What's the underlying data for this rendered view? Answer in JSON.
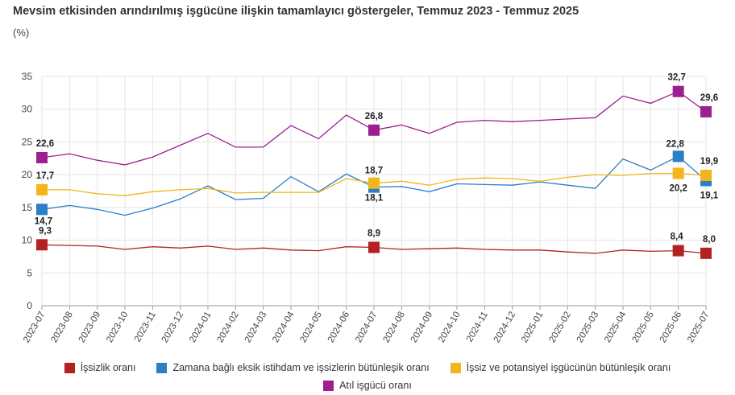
{
  "title": "Mevsim etkisinden arındırılmış işgücüne ilişkin tamamlayıcı göstergeler, Temmuz 2023 - Temmuz 2025",
  "subtitle": "(%)",
  "chart_data": {
    "type": "line",
    "categories": [
      "2023-07",
      "2023-08",
      "2023-09",
      "2023-10",
      "2023-11",
      "2023-12",
      "2024-01",
      "2024-02",
      "2024-03",
      "2024-04",
      "2024-05",
      "2024-06",
      "2024-07",
      "2024-08",
      "2024-09",
      "2024-10",
      "2024-11",
      "2024-12",
      "2025-01",
      "2025-02",
      "2025-03",
      "2025-04",
      "2025-05",
      "2025-06",
      "2025-07"
    ],
    "ylim": [
      0,
      35
    ],
    "yticks": [
      0,
      5,
      10,
      15,
      20,
      25,
      30,
      35
    ],
    "grid": true,
    "legend_position": "bottom",
    "series": [
      {
        "name": "İşsizlik oranı",
        "color": "#b22222",
        "values": [
          9.3,
          9.2,
          9.1,
          8.6,
          9.0,
          8.8,
          9.1,
          8.6,
          8.8,
          8.5,
          8.4,
          9.0,
          8.9,
          8.6,
          8.7,
          8.8,
          8.6,
          8.5,
          8.5,
          8.2,
          8.0,
          8.5,
          8.3,
          8.4,
          8.0
        ]
      },
      {
        "name": "Zamana bağlı eksik istihdam ve işsizlerin bütünleşik oranı",
        "color": "#2a7fc6",
        "values": [
          14.7,
          15.3,
          14.7,
          13.8,
          14.9,
          16.3,
          18.3,
          16.2,
          16.4,
          19.7,
          17.4,
          20.1,
          18.1,
          18.2,
          17.4,
          18.6,
          18.5,
          18.4,
          18.9,
          18.4,
          17.9,
          22.4,
          20.7,
          22.8,
          19.1
        ]
      },
      {
        "name": "İşsiz ve potansiyel işgücünün bütünleşik oranı",
        "color": "#f2b51a",
        "values": [
          17.7,
          17.7,
          17.1,
          16.8,
          17.4,
          17.7,
          17.9,
          17.2,
          17.3,
          17.3,
          17.3,
          19.4,
          18.7,
          19.0,
          18.4,
          19.3,
          19.5,
          19.4,
          19.0,
          19.6,
          20.0,
          19.9,
          20.2,
          20.2,
          19.9
        ]
      },
      {
        "name": "Atıl işgücü oranı",
        "color": "#9b1f8f",
        "values": [
          22.6,
          23.2,
          22.2,
          21.5,
          22.7,
          24.5,
          26.3,
          24.2,
          24.2,
          27.5,
          25.5,
          29.1,
          26.8,
          27.6,
          26.3,
          28.0,
          28.3,
          28.1,
          28.3,
          28.5,
          28.7,
          32.0,
          30.9,
          32.7,
          29.6
        ]
      }
    ],
    "highlighted_points": [
      {
        "series": 0,
        "indices": [
          0,
          12,
          23,
          24
        ],
        "labels": [
          "9,3",
          "8,9",
          "8,4",
          "8,0"
        ]
      },
      {
        "series": 1,
        "indices": [
          0,
          12,
          23,
          24
        ],
        "labels": [
          "14,7",
          "18,1",
          "22,8",
          "19,1"
        ]
      },
      {
        "series": 2,
        "indices": [
          0,
          12,
          23,
          24
        ],
        "labels": [
          "17,7",
          "18,7",
          "20,2",
          "19,9"
        ]
      },
      {
        "series": 3,
        "indices": [
          0,
          12,
          23,
          24
        ],
        "labels": [
          "22,6",
          "26,8",
          "32,7",
          "29,6"
        ]
      }
    ]
  }
}
